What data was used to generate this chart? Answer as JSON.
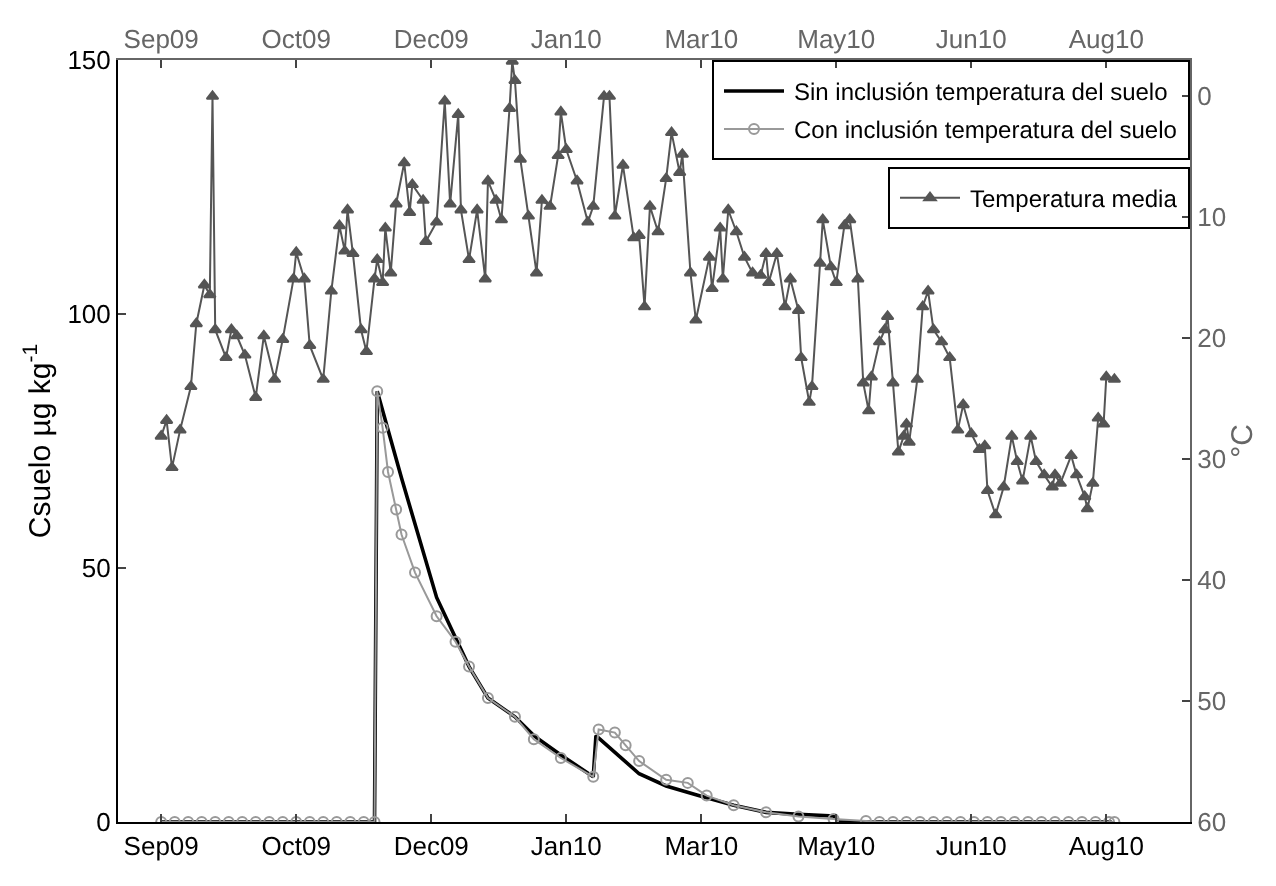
{
  "chart_data": {
    "type": "line",
    "ylabel": "Csuelo µg kg$^{-1}$",
    "y2label": "°C",
    "xlim": [
      "2009-08-16",
      "2010-09-17"
    ],
    "xticks": [
      {
        "value": "2009-09-01",
        "label": "Sep09"
      },
      {
        "value": "2009-10-21",
        "label": "Oct09"
      },
      {
        "value": "2009-12-10",
        "label": "Dec09"
      },
      {
        "value": "2010-01-29",
        "label": "Jan10"
      },
      {
        "value": "2010-03-20",
        "label": "Mar10"
      },
      {
        "value": "2010-05-09",
        "label": "May10"
      },
      {
        "value": "2010-06-28",
        "label": "Jun10"
      },
      {
        "value": "2010-08-17",
        "label": "Aug10"
      }
    ],
    "x2lim": [
      "2009-08-16",
      "2010-09-17"
    ],
    "x2ticks": [
      {
        "value": "2009-09-01",
        "label": "Sep09"
      },
      {
        "value": "2009-10-21",
        "label": "Oct09"
      },
      {
        "value": "2009-12-10",
        "label": "Dec09"
      },
      {
        "value": "2010-01-29",
        "label": "Jan10"
      },
      {
        "value": "2010-03-20",
        "label": "Mar10"
      },
      {
        "value": "2010-05-09",
        "label": "May10"
      },
      {
        "value": "2010-06-28",
        "label": "Jun10"
      },
      {
        "value": "2010-08-17",
        "label": "Aug10"
      }
    ],
    "ylim": [
      0,
      150
    ],
    "yticks": [
      0,
      50,
      100,
      150
    ],
    "y2lim": [
      60,
      -3
    ],
    "y2ticks": [
      0,
      10,
      20,
      30,
      40,
      50,
      60
    ],
    "grid": false,
    "legend": "top right",
    "series": [
      {
        "name": "Sin inclusión temperatura del suelo",
        "color": "#000000",
        "marker": "none",
        "x": [
          "2009-09-01",
          "2009-11-19",
          "2009-11-20",
          "2009-11-29",
          "2009-12-12",
          "2009-12-24",
          "2009-12-31",
          "2010-01-10",
          "2010-01-17",
          "2010-01-27",
          "2010-02-08",
          "2010-02-09",
          "2010-02-25",
          "2010-03-07",
          "2010-03-19",
          "2010-04-01",
          "2010-04-13",
          "2010-04-25",
          "2010-05-08",
          "2010-05-10",
          "2010-08-19"
        ],
        "values": [
          0,
          0,
          84.8,
          67.7,
          44.2,
          30.6,
          24.4,
          20.7,
          17.0,
          13.2,
          8.9,
          17.0,
          9.5,
          7.1,
          5.2,
          3.3,
          1.9,
          1.5,
          1.2,
          0,
          0
        ]
      },
      {
        "name": "Con inclusión temperatura del suelo",
        "color": "#999999",
        "marker": "circle",
        "x": [
          "2009-09-01",
          "2009-09-06",
          "2009-09-11",
          "2009-09-16",
          "2009-09-21",
          "2009-09-26",
          "2009-10-01",
          "2009-10-06",
          "2009-10-11",
          "2009-10-16",
          "2009-10-21",
          "2009-10-26",
          "2009-10-31",
          "2009-11-05",
          "2009-11-10",
          "2009-11-15",
          "2009-11-19",
          "2009-11-20",
          "2009-11-22",
          "2009-11-24",
          "2009-11-27",
          "2009-11-29",
          "2009-12-04",
          "2009-12-12",
          "2009-12-19",
          "2009-12-24",
          "2009-12-31",
          "2010-01-10",
          "2010-01-17",
          "2010-01-27",
          "2010-02-08",
          "2010-02-10",
          "2010-02-16",
          "2010-02-20",
          "2010-02-25",
          "2010-03-07",
          "2010-03-15",
          "2010-03-22",
          "2010-04-01",
          "2010-04-13",
          "2010-04-25",
          "2010-05-08",
          "2010-05-20",
          "2010-05-25",
          "2010-05-30",
          "2010-06-04",
          "2010-06-09",
          "2010-06-14",
          "2010-06-19",
          "2010-06-24",
          "2010-06-29",
          "2010-07-04",
          "2010-07-09",
          "2010-07-14",
          "2010-07-19",
          "2010-07-24",
          "2010-07-29",
          "2010-08-03",
          "2010-08-08",
          "2010-08-13",
          "2010-08-18",
          "2010-08-20"
        ],
        "values": [
          0,
          0,
          0,
          0,
          0,
          0,
          0,
          0,
          0,
          0,
          0,
          0,
          0,
          0,
          0,
          0,
          0,
          84.8,
          77.6,
          68.9,
          61.5,
          56.6,
          49.1,
          40.5,
          35.5,
          30.6,
          24.4,
          20.7,
          16.3,
          12.6,
          8.9,
          18.2,
          17.6,
          15.1,
          12.0,
          8.3,
          7.7,
          5.2,
          3.3,
          1.9,
          1.1,
          0.6,
          0.2,
          0,
          0,
          0,
          0,
          0,
          0,
          0,
          0,
          0,
          0,
          0,
          0,
          0,
          0,
          0,
          0,
          0,
          0,
          0
        ]
      },
      {
        "name": "Temperatura media",
        "color": "#555555",
        "marker": "triangle",
        "axis": "y2",
        "x": [
          "2009-09-01",
          "2009-09-03",
          "2009-09-05",
          "2009-09-08",
          "2009-09-12",
          "2009-09-14",
          "2009-09-17",
          "2009-09-19",
          "2009-09-20",
          "2009-09-21",
          "2009-09-25",
          "2009-09-27",
          "2009-09-29",
          "2009-10-02",
          "2009-10-06",
          "2009-10-09",
          "2009-10-13",
          "2009-10-16",
          "2009-10-20",
          "2009-10-21",
          "2009-10-24",
          "2009-10-26",
          "2009-10-31",
          "2009-11-03",
          "2009-11-06",
          "2009-11-08",
          "2009-11-09",
          "2009-11-11",
          "2009-11-14",
          "2009-11-16",
          "2009-11-19",
          "2009-11-20",
          "2009-11-22",
          "2009-11-23",
          "2009-11-25",
          "2009-11-27",
          "2009-11-30",
          "2009-12-02",
          "2009-12-03",
          "2009-12-07",
          "2009-12-08",
          "2009-12-12",
          "2009-12-15",
          "2009-12-17",
          "2009-12-20",
          "2009-12-21",
          "2009-12-24",
          "2009-12-27",
          "2009-12-30",
          "2009-12-31",
          "2010-01-03",
          "2010-01-05",
          "2010-01-08",
          "2010-01-09",
          "2010-01-10",
          "2010-01-12",
          "2010-01-15",
          "2010-01-18",
          "2010-01-20",
          "2010-01-23",
          "2010-01-26",
          "2010-01-27",
          "2010-01-29",
          "2010-02-02",
          "2010-02-06",
          "2010-02-08",
          "2010-02-12",
          "2010-02-14",
          "2010-02-16",
          "2010-02-19",
          "2010-02-23",
          "2010-02-25",
          "2010-02-27",
          "2010-03-01",
          "2010-03-04",
          "2010-03-07",
          "2010-03-09",
          "2010-03-12",
          "2010-03-13",
          "2010-03-16",
          "2010-03-18",
          "2010-03-23",
          "2010-03-24",
          "2010-03-27",
          "2010-03-28",
          "2010-03-30",
          "2010-04-02",
          "2010-04-05",
          "2010-04-08",
          "2010-04-11",
          "2010-04-13",
          "2010-04-14",
          "2010-04-17",
          "2010-04-20",
          "2010-04-22",
          "2010-04-25",
          "2010-04-26",
          "2010-04-29",
          "2010-04-30",
          "2010-05-03",
          "2010-05-04",
          "2010-05-07",
          "2010-05-09",
          "2010-05-12",
          "2010-05-14",
          "2010-05-17",
          "2010-05-19",
          "2010-05-21",
          "2010-05-22",
          "2010-05-25",
          "2010-05-27",
          "2010-05-28",
          "2010-05-30",
          "2010-06-01",
          "2010-06-03",
          "2010-06-04",
          "2010-06-05",
          "2010-06-08",
          "2010-06-10",
          "2010-06-12",
          "2010-06-14",
          "2010-06-17",
          "2010-06-20",
          "2010-06-23",
          "2010-06-25",
          "2010-06-28",
          "2010-07-01",
          "2010-07-03",
          "2010-07-04",
          "2010-07-07",
          "2010-07-10",
          "2010-07-13",
          "2010-07-15",
          "2010-07-17",
          "2010-07-20",
          "2010-07-22",
          "2010-07-25",
          "2010-07-28",
          "2010-07-29",
          "2010-07-31",
          "2010-08-04",
          "2010-08-06",
          "2010-08-09",
          "2010-08-10",
          "2010-08-12",
          "2010-08-14",
          "2010-08-16",
          "2010-08-17",
          "2010-08-20"
        ],
        "values": [
          28.1,
          26.8,
          30.7,
          27.6,
          24.0,
          18.8,
          15.6,
          16.4,
          0,
          19.3,
          21.6,
          19.3,
          19.8,
          21.4,
          24.9,
          19.8,
          23.4,
          20.1,
          15.1,
          12.9,
          15.1,
          20.6,
          23.4,
          16.1,
          10.7,
          12.8,
          9.4,
          13.0,
          19.3,
          21.1,
          15.1,
          13.5,
          15.4,
          10.9,
          14.6,
          8.9,
          5.5,
          9.6,
          7.3,
          8.6,
          12.0,
          10.4,
          0.4,
          8.9,
          1.5,
          9.4,
          13.5,
          9.4,
          15.1,
          7.0,
          8.6,
          10.2,
          1.0,
          -2.9,
          -1.3,
          5.2,
          9.9,
          14.6,
          8.6,
          9.1,
          4.9,
          1.3,
          4.4,
          7.0,
          10.4,
          9.1,
          0,
          0,
          9.9,
          5.7,
          11.7,
          11.5,
          17.4,
          9.1,
          11.2,
          6.8,
          3.0,
          6.3,
          4.8,
          14.6,
          18.5,
          13.3,
          15.9,
          10.9,
          15.1,
          9.4,
          11.2,
          13.3,
          14.6,
          14.8,
          13.0,
          15.4,
          13.0,
          17.4,
          15.1,
          17.7,
          21.6,
          25.3,
          24.0,
          13.8,
          10.2,
          14.1,
          15.4,
          10.7,
          10.2,
          15.1,
          23.7,
          26.0,
          23.2,
          20.3,
          19.3,
          18.2,
          23.7,
          29.4,
          28.1,
          27.1,
          28.6,
          23.4,
          17.4,
          16.1,
          19.3,
          20.3,
          21.6,
          27.6,
          25.5,
          27.9,
          29.2,
          28.9,
          32.6,
          34.6,
          32.3,
          28.1,
          30.2,
          31.8,
          28.1,
          30.2,
          31.3,
          32.3,
          31.3,
          32.0,
          29.7,
          31.3,
          33.1,
          34.1,
          32.0,
          26.6,
          27.1,
          23.2,
          23.4
        ]
      }
    ]
  }
}
